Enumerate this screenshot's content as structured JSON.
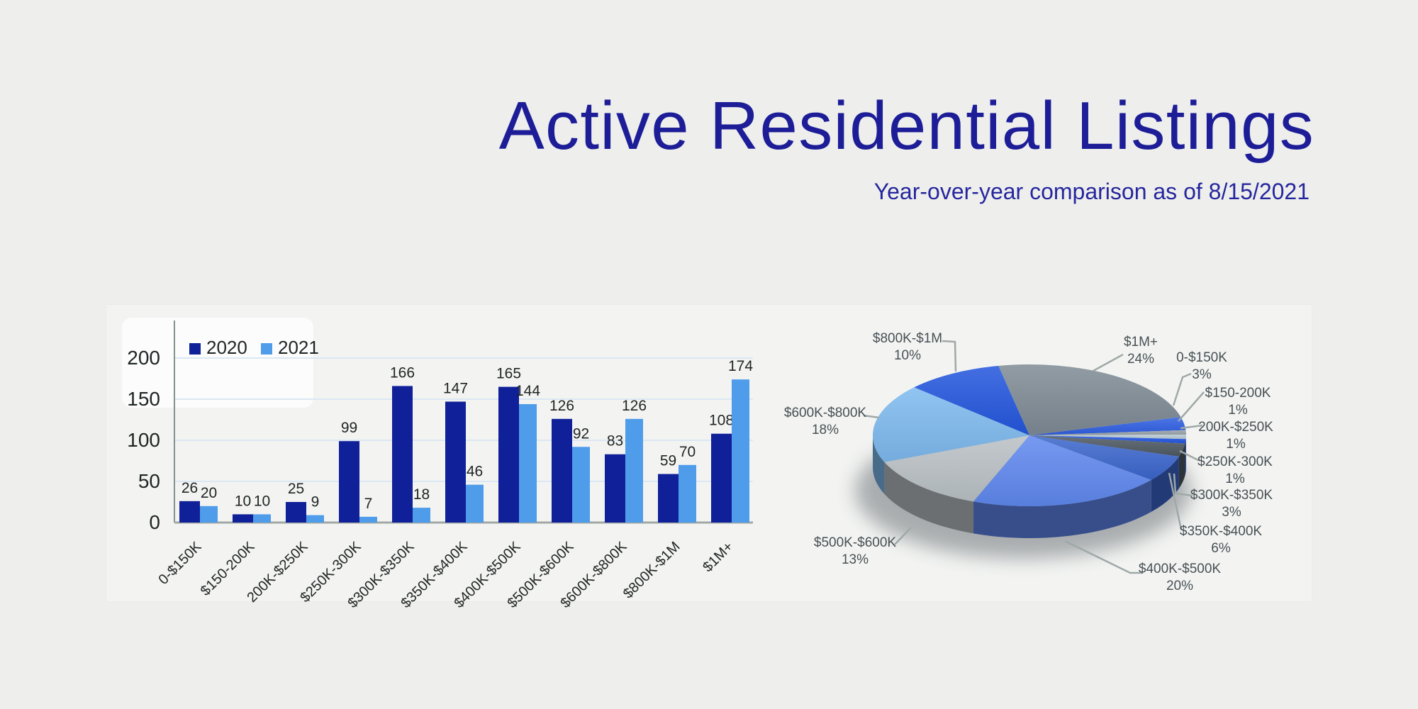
{
  "header": {
    "title": "Active Residential Listings",
    "subtitle": "Year-over-year comparison as of 8/15/2021",
    "title_color": "#1d1d98"
  },
  "chart_data": [
    {
      "type": "bar",
      "title": "",
      "categories": [
        "0-$150K",
        "$150-200K",
        "200K-$250K",
        "$250K-300K",
        "$300K-$350K",
        "$350K-$400K",
        "$400K-$500K",
        "$500K-$600K",
        "$600K-$800K",
        "$800K-$1M",
        "$1M+"
      ],
      "series": [
        {
          "name": "2020",
          "color": "#0f2099",
          "values": [
            26,
            10,
            25,
            99,
            166,
            147,
            165,
            126,
            83,
            59,
            108
          ]
        },
        {
          "name": "2021",
          "color": "#4f9ceb",
          "values": [
            20,
            10,
            9,
            7,
            18,
            46,
            144,
            92,
            126,
            70,
            174
          ]
        }
      ],
      "xlabel": "",
      "ylabel": "",
      "ylim": [
        0,
        200
      ],
      "yticks": [
        0,
        50,
        100,
        150,
        200
      ],
      "grid": true,
      "legend_position": "top-left",
      "gridline_color": "#dbe7f3"
    },
    {
      "type": "pie",
      "style": "3d",
      "start_angle_deg": 75,
      "unit": "%",
      "categories": [
        "0-$150K",
        "$150-200K",
        "200K-$250K",
        "$250K-300K",
        "$300K-$350K",
        "$350K-$400K",
        "$400K-$500K",
        "$500K-$600K",
        "$600K-$800K",
        "$800K-$1M",
        "$1M+"
      ],
      "values": [
        3,
        1,
        1,
        1,
        3,
        6,
        20,
        13,
        18,
        10,
        24
      ],
      "colors": [
        "#2e5ee2",
        "#97a1a7",
        "#b7c9d4",
        "#2254e0",
        "#4e5962",
        "#3b66cc",
        "#5f87ee",
        "#b9c0c4",
        "#7db9ee",
        "#2356dd",
        "#7e8a94"
      ]
    }
  ]
}
